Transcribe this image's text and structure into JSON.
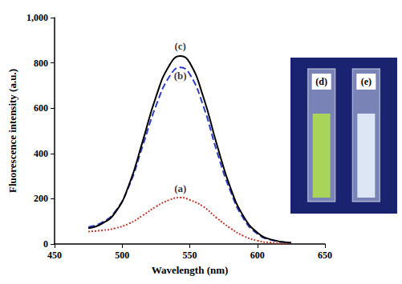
{
  "chart_data": {
    "type": "line",
    "x_label": "Wavelength (nm)",
    "y_label": "Fluorescence intensity (a.u.)",
    "xlim": [
      450,
      650
    ],
    "xticks": [
      450,
      500,
      550,
      600,
      650
    ],
    "ylim": [
      0,
      1000
    ],
    "yticks": [
      0,
      200,
      400,
      600,
      800,
      {
        "value": 1000,
        "label": "1,000"
      }
    ],
    "grid": false,
    "x": [
      475,
      485,
      495,
      505,
      515,
      525,
      535,
      543,
      550,
      560,
      570,
      580,
      590,
      600,
      610,
      625
    ],
    "series": [
      {
        "color": "#c0392b",
        "line_style": "dotted",
        "values": [
          55,
          60,
          70,
          90,
          125,
          165,
          195,
          205,
          195,
          165,
          115,
          70,
          35,
          15,
          6,
          2
        ]
      },
      {
        "color": "#2e3fc7",
        "line_style": "dashed",
        "values": [
          75,
          95,
          145,
          255,
          430,
          610,
          740,
          780,
          750,
          610,
          410,
          235,
          110,
          45,
          18,
          5
        ]
      },
      {
        "color": "#000000",
        "line_style": "solid",
        "values": [
          70,
          90,
          140,
          260,
          450,
          650,
          790,
          830,
          800,
          650,
          440,
          250,
          120,
          50,
          20,
          5
        ]
      }
    ],
    "annotations": [
      {
        "text": "(a)",
        "x": 543,
        "y": 245
      },
      {
        "text": "(b)",
        "x": 543,
        "y": 745
      },
      {
        "text": "(c)",
        "x": 543,
        "y": 875
      }
    ],
    "inset": {
      "type": "photo",
      "color": "#1a2370",
      "cuvettes": [
        {
          "label": "(d)",
          "color": "#a8d45a"
        },
        {
          "label": "(e)",
          "color": "#dde6f4"
        }
      ]
    }
  }
}
